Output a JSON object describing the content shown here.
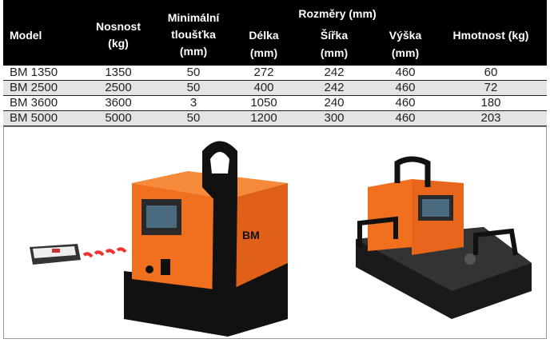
{
  "table": {
    "header": [
      {
        "lines": [
          "Model"
        ]
      },
      {
        "lines": [
          "Nosnost",
          "(kg)"
        ]
      },
      {
        "lines": [
          "Minimální",
          "tloušťka",
          "(mm)"
        ]
      },
      {
        "lines": [
          "Délka",
          "(mm)"
        ]
      },
      {
        "lines": [
          "Šířka",
          "(mm)"
        ]
      },
      {
        "lines": [
          "Výška",
          "(mm)"
        ]
      },
      {
        "lines": [
          "Hmotnost (kg)"
        ]
      }
    ],
    "group_header": "Rozměry (mm)",
    "rows": [
      [
        "BM 1350",
        1350,
        50,
        272,
        242,
        460,
        60
      ],
      [
        "BM 2500",
        2500,
        50,
        400,
        242,
        460,
        72
      ],
      [
        "BM 3600",
        3600,
        3,
        1050,
        240,
        460,
        180
      ],
      [
        "BM 5000",
        5000,
        50,
        1200,
        300,
        460,
        203
      ]
    ]
  }
}
